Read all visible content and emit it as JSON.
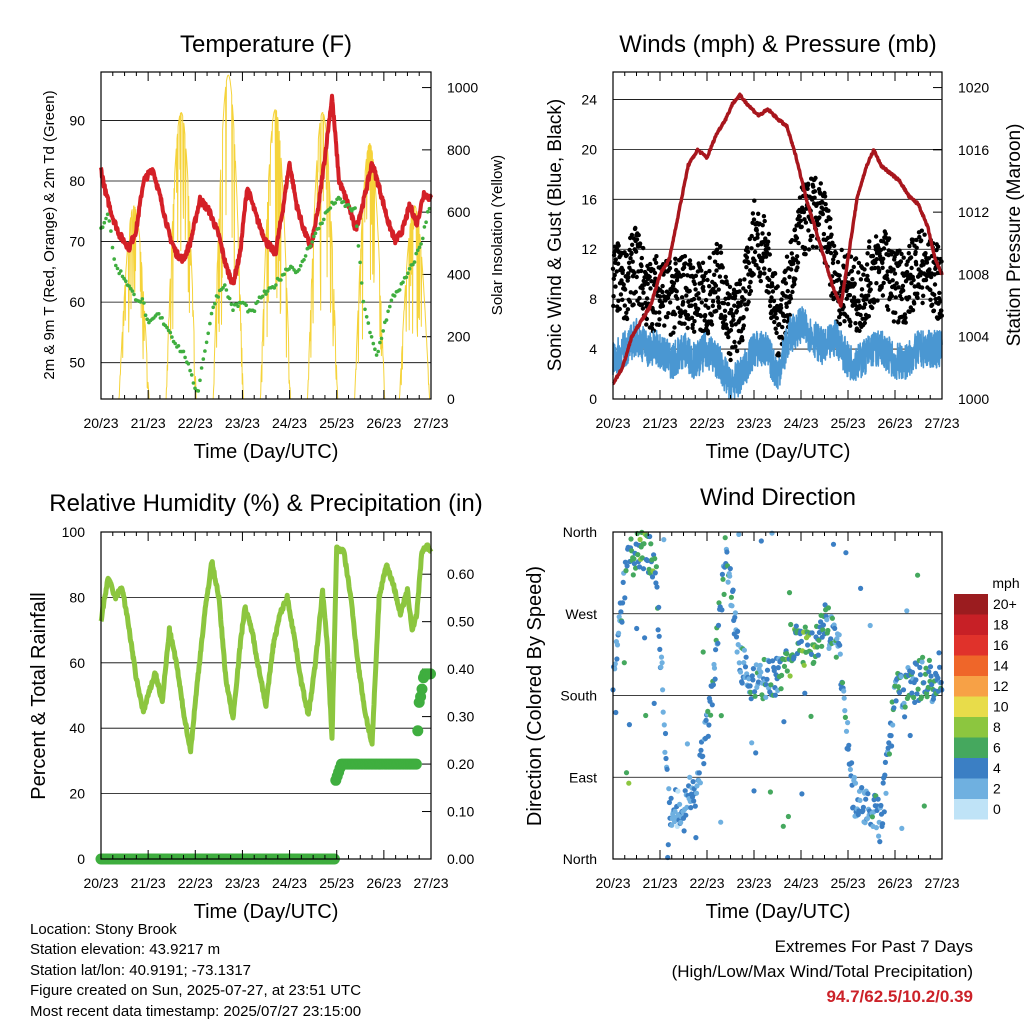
{
  "time_ticks": [
    "20/23",
    "21/23",
    "22/23",
    "23/23",
    "24/23",
    "25/23",
    "26/23",
    "27/23"
  ],
  "info": {
    "location": "Location: Stony Brook",
    "elevation": "Station elevation: 43.9217 m",
    "latlon": "Station lat/lon: 40.9191; -73.1317",
    "created": "Figure created on Sun, 2025-07-27, at 23:51 UTC",
    "recent": "Most recent data timestamp: 2025/07/27 23:15:00"
  },
  "extremes": {
    "title": "Extremes For Past 7 Days",
    "subtitle": "(High/Low/Max Wind/Total Precipitation)",
    "values": "94.7/62.5/10.2/0.39"
  },
  "colors": {
    "temp_red": "#d42027",
    "temp_orange": "#f07b2b",
    "dewpoint_green": "#3fae3f",
    "solar_yellow": "#f5d33a",
    "wind_blue": "#4a97d2",
    "gust_black": "#000000",
    "pressure_maroon": "#a8161d",
    "rh_light_green": "#8cc63f",
    "precip_green": "#3fae3f"
  },
  "chart_data": [
    {
      "type": "line",
      "title": "Temperature (F)",
      "xlabel": "Time (Day/UTC)",
      "ylabel": "2m & 9m T (Red, Orange) & 2m Td (Green)",
      "ylabel_right": "Solar Insolation (Yellow)",
      "x_ticks": [
        "20/23",
        "21/23",
        "22/23",
        "23/23",
        "24/23",
        "25/23",
        "26/23",
        "27/23"
      ],
      "x_range_days": [
        0,
        7
      ],
      "ylim": [
        44,
        98
      ],
      "yticks": [
        50,
        60,
        70,
        80,
        90
      ],
      "ylim_right": [
        0,
        1050
      ],
      "yticks_right": [
        0,
        200,
        400,
        600,
        800,
        1000
      ],
      "grid": true,
      "series": [
        {
          "name": "2m T",
          "color": "#d42027",
          "x": [
            0,
            0.1,
            0.25,
            0.4,
            0.6,
            0.75,
            0.9,
            1.1,
            1.3,
            1.45,
            1.6,
            1.75,
            1.9,
            2.1,
            2.3,
            2.5,
            2.65,
            2.8,
            2.95,
            3.1,
            3.3,
            3.5,
            3.7,
            3.85,
            4.0,
            4.15,
            4.3,
            4.45,
            4.6,
            4.75,
            4.9,
            5.05,
            5.25,
            5.4,
            5.55,
            5.75,
            5.9,
            6.1,
            6.25,
            6.4,
            6.55,
            6.7,
            6.85,
            7.0
          ],
          "y": [
            82,
            78,
            74,
            71,
            69,
            72,
            80,
            82,
            76,
            71,
            68,
            67,
            70,
            77,
            75,
            71,
            66,
            63,
            68,
            79,
            74,
            70,
            68,
            75,
            83,
            76,
            72,
            69,
            75,
            84,
            94,
            80,
            76,
            72,
            76,
            83,
            79,
            73,
            70,
            72,
            76,
            73,
            78,
            77
          ]
        },
        {
          "name": "2m Td",
          "color": "#3fae3f",
          "x": [
            0,
            0.15,
            0.3,
            0.5,
            0.7,
            0.9,
            1.0,
            1.2,
            1.4,
            1.6,
            1.8,
            1.9,
            2.05,
            2.2,
            2.4,
            2.6,
            2.8,
            3.0,
            3.2,
            3.4,
            3.6,
            3.8,
            4.0,
            4.2,
            4.4,
            4.6,
            4.8,
            5.0,
            5.2,
            5.4,
            5.55,
            5.7,
            5.85,
            6.0,
            6.2,
            6.4,
            6.6,
            6.8,
            7.0
          ],
          "y": [
            72,
            75,
            66,
            64,
            61,
            60,
            56,
            58,
            56,
            53,
            51,
            48,
            45,
            52,
            60,
            63,
            59,
            60,
            58,
            61,
            62,
            64,
            66,
            65,
            69,
            72,
            75,
            77,
            76,
            75,
            61,
            55,
            51,
            56,
            61,
            63,
            66,
            70,
            77
          ]
        },
        {
          "name": "Solar",
          "color": "#f5d33a",
          "axis": "right",
          "peaks": [
            {
              "x": 0.7,
              "v": 620
            },
            {
              "x": 1.7,
              "v": 920
            },
            {
              "x": 2.7,
              "v": 1040
            },
            {
              "x": 3.7,
              "v": 930
            },
            {
              "x": 4.7,
              "v": 920
            },
            {
              "x": 5.7,
              "v": 820
            },
            {
              "x": 6.65,
              "v": 620
            }
          ]
        }
      ]
    },
    {
      "type": "scatter",
      "title": "Winds (mph) & Pressure (mb)",
      "xlabel": "Time (Day/UTC)",
      "ylabel": "Sonic Wind & Gust (Blue, Black)",
      "ylabel_right": "Station Pressure (Maroon)",
      "x_ticks": [
        "20/23",
        "21/23",
        "22/23",
        "23/23",
        "24/23",
        "25/23",
        "26/23",
        "27/23"
      ],
      "x_range_days": [
        0,
        7
      ],
      "ylim": [
        0,
        26.2
      ],
      "yticks": [
        0,
        4,
        8,
        12,
        16,
        20,
        24
      ],
      "ylim_right": [
        1000,
        1021
      ],
      "yticks_right": [
        1000,
        1004,
        1008,
        1012,
        1016,
        1020
      ],
      "grid": true,
      "series": [
        {
          "name": "Pressure",
          "color": "#a8161d",
          "axis": "right",
          "x": [
            0,
            0.2,
            0.4,
            0.6,
            0.8,
            1.0,
            1.2,
            1.4,
            1.6,
            1.8,
            2.0,
            2.2,
            2.4,
            2.55,
            2.7,
            2.9,
            3.1,
            3.3,
            3.5,
            3.7,
            3.9,
            4.1,
            4.3,
            4.5,
            4.7,
            4.85,
            5.0,
            5.2,
            5.4,
            5.55,
            5.7,
            5.9,
            6.1,
            6.3,
            6.5,
            6.7,
            6.85,
            7.0
          ],
          "y": [
            1001,
            1002,
            1004,
            1005,
            1006,
            1008,
            1009,
            1012,
            1015,
            1016,
            1015.5,
            1017,
            1018,
            1019,
            1019.5,
            1018.8,
            1018.2,
            1018.6,
            1018,
            1017.5,
            1015.5,
            1013,
            1011,
            1009,
            1007,
            1006,
            1009,
            1013,
            1015,
            1016,
            1015,
            1014.5,
            1014,
            1013,
            1012.5,
            1011,
            1009,
            1008
          ]
        },
        {
          "name": "Sonic Wind",
          "color": "#4a97d2",
          "x": [
            0,
            0.25,
            0.5,
            0.75,
            1.0,
            1.25,
            1.5,
            1.75,
            2.0,
            2.25,
            2.5,
            2.75,
            3.0,
            3.25,
            3.5,
            3.75,
            4.0,
            4.25,
            4.5,
            4.75,
            5.0,
            5.25,
            5.5,
            5.75,
            6.0,
            6.25,
            6.5,
            6.75,
            7.0
          ],
          "y": [
            3,
            4,
            5,
            4,
            4,
            3,
            4,
            3,
            4,
            3,
            1,
            2,
            4,
            4,
            2,
            5,
            6,
            5,
            4,
            5,
            3,
            3,
            4,
            4,
            3,
            3,
            4,
            4,
            4
          ]
        },
        {
          "name": "Gust",
          "color": "#000000",
          "x": [
            0,
            0.25,
            0.5,
            0.75,
            1.0,
            1.25,
            1.5,
            1.75,
            2.0,
            2.25,
            2.5,
            2.75,
            3.0,
            3.25,
            3.5,
            3.75,
            4.0,
            4.25,
            4.5,
            4.75,
            5.0,
            5.25,
            5.5,
            5.75,
            6.0,
            6.25,
            6.5,
            6.75,
            7.0
          ],
          "y": [
            10,
            9,
            11,
            8,
            9,
            8,
            9,
            8,
            8,
            10,
            6,
            7,
            13,
            12,
            6,
            9,
            14,
            15,
            14,
            9,
            9,
            8,
            10,
            11,
            9,
            9,
            11,
            10,
            9
          ]
        }
      ]
    },
    {
      "type": "line",
      "title": "Relative Humidity (%) & Precipitation (in)",
      "xlabel": "Time (Day/UTC)",
      "ylabel": "Percent & Total Rainfall",
      "x_ticks": [
        "20/23",
        "21/23",
        "22/23",
        "23/23",
        "24/23",
        "25/23",
        "26/23",
        "27/23"
      ],
      "x_range_days": [
        0,
        7
      ],
      "ylim": [
        0,
        100
      ],
      "yticks": [
        0,
        20,
        40,
        60,
        80,
        100
      ],
      "ylim_right": [
        0,
        0.6889
      ],
      "yticks_right": [
        "0.00",
        "0.10",
        "0.20",
        "0.30",
        "0.40",
        "0.50",
        "0.60"
      ],
      "grid": true,
      "series": [
        {
          "name": "RH",
          "color": "#8cc63f",
          "x": [
            0,
            0.15,
            0.3,
            0.45,
            0.6,
            0.75,
            0.9,
            1.0,
            1.15,
            1.3,
            1.45,
            1.6,
            1.75,
            1.9,
            2.05,
            2.2,
            2.35,
            2.5,
            2.65,
            2.8,
            2.95,
            3.05,
            3.2,
            3.35,
            3.5,
            3.65,
            3.8,
            3.95,
            4.1,
            4.25,
            4.4,
            4.55,
            4.7,
            4.8,
            4.9,
            5.0,
            5.15,
            5.3,
            5.45,
            5.6,
            5.75,
            5.9,
            6.05,
            6.2,
            6.35,
            6.5,
            6.6,
            6.7,
            6.8,
            6.9,
            7.0
          ],
          "y": [
            73,
            86,
            80,
            83,
            70,
            55,
            45,
            50,
            57,
            48,
            70,
            60,
            45,
            33,
            55,
            75,
            91,
            80,
            55,
            43,
            65,
            77,
            70,
            58,
            47,
            65,
            75,
            80,
            68,
            54,
            44,
            60,
            82,
            65,
            37,
            95,
            94,
            80,
            60,
            45,
            35,
            80,
            90,
            84,
            75,
            82,
            70,
            75,
            93,
            96,
            94
          ]
        },
        {
          "name": "Precipitation",
          "color": "#3fae3f",
          "axis": "right",
          "x": [
            0,
            4.95,
            4.96,
            5.1,
            6.6,
            6.7,
            6.71,
            6.75,
            6.8,
            6.85,
            7.0
          ],
          "y": [
            0,
            0,
            0.16,
            0.2,
            0.2,
            0.2,
            0.25,
            0.33,
            0.35,
            0.39,
            0.39
          ]
        }
      ]
    },
    {
      "type": "scatter",
      "title": "Wind Direction",
      "xlabel": "Time (Day/UTC)",
      "ylabel": "Direction (Colored By Speed)",
      "x_ticks": [
        "20/23",
        "21/23",
        "22/23",
        "23/23",
        "24/23",
        "25/23",
        "26/23",
        "27/23"
      ],
      "x_range_days": [
        0,
        7
      ],
      "y_ticks": [
        "North",
        "East",
        "South",
        "West",
        "North"
      ],
      "ylim": [
        0,
        360
      ],
      "grid": true,
      "colorbar": {
        "title": "mph",
        "labels": [
          "20+",
          "18",
          "16",
          "14",
          "12",
          "10",
          "8",
          "6",
          "4",
          "2",
          "0"
        ],
        "colors": [
          "#9b1c1f",
          "#c72026",
          "#e0322b",
          "#ef6629",
          "#f7a146",
          "#e8dc4a",
          "#8cc63f",
          "#45a85e",
          "#3b7fc4",
          "#6fb0e0",
          "#bfe3f7"
        ]
      },
      "series": [
        {
          "name": "Direction",
          "x": [
            0,
            0.3,
            0.6,
            0.9,
            1.2,
            1.5,
            1.8,
            2.1,
            2.4,
            2.7,
            3.0,
            3.3,
            3.6,
            3.9,
            4.2,
            4.5,
            4.8,
            5.1,
            5.4,
            5.7,
            6.0,
            6.3,
            6.6,
            7.0
          ],
          "y": [
            200,
            330,
            340,
            330,
            50,
            60,
            80,
            180,
            340,
            220,
            190,
            200,
            200,
            240,
            230,
            260,
            240,
            70,
            60,
            40,
            180,
            190,
            200,
            190
          ],
          "speed": [
            3,
            5,
            6,
            5,
            2,
            3,
            3,
            4,
            4,
            3,
            4,
            4,
            5,
            6,
            6,
            5,
            4,
            3,
            3,
            4,
            4,
            4,
            5,
            4
          ]
        }
      ]
    }
  ]
}
